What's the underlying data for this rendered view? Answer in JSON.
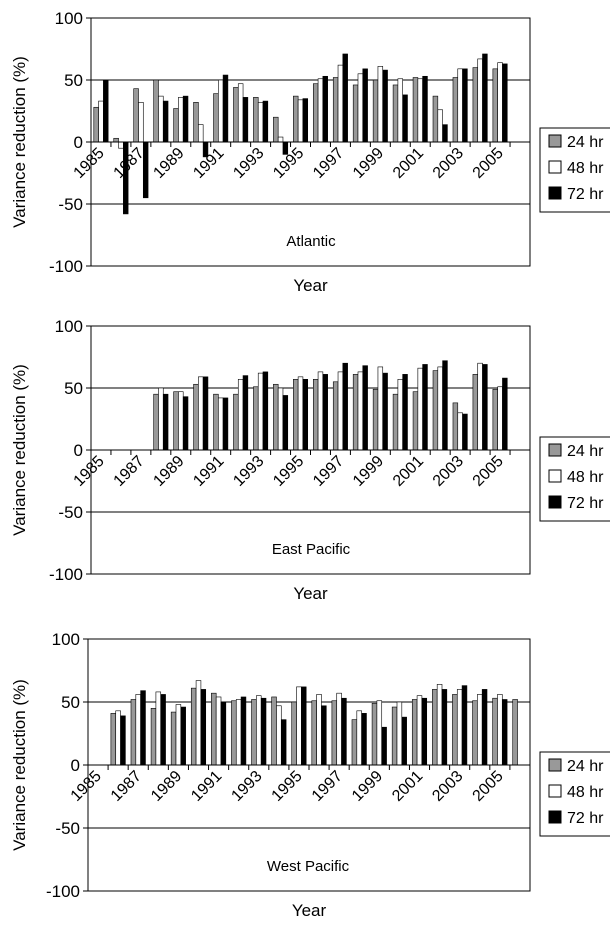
{
  "chart_data": [
    {
      "type": "bar",
      "annotation": "Atlantic",
      "xlabel": "Year",
      "ylabel": "Variance reduction (%)",
      "ylim": [
        -100,
        100
      ],
      "yticks": [
        100,
        50,
        0,
        -50,
        -100
      ],
      "categories": [
        "1985",
        "1986",
        "1987",
        "1988",
        "1989",
        "1990",
        "1991",
        "1992",
        "1993",
        "1994",
        "1995",
        "1996",
        "1997",
        "1998",
        "1999",
        "2000",
        "2001",
        "2002",
        "2003",
        "2004",
        "2005",
        "2006"
      ],
      "xtick_labels": [
        "1985",
        "1987",
        "1989",
        "1991",
        "1993",
        "1995",
        "1997",
        "1999",
        "2001",
        "2003",
        "2005"
      ],
      "legend_position": "right",
      "grid": "horizontal lines at 50, 0 and -50",
      "series": [
        {
          "name": "24 hr",
          "color": "#999999",
          "values": [
            28,
            3,
            43,
            50,
            27,
            32,
            39,
            44,
            36,
            20,
            37,
            47,
            52,
            46,
            50,
            46,
            52,
            37,
            52,
            60,
            59,
            null
          ]
        },
        {
          "name": "48 hr",
          "color": "#ffffff",
          "values": [
            33,
            -5,
            32,
            37,
            36,
            14,
            50,
            47,
            32,
            4,
            34,
            51,
            62,
            55,
            61,
            51,
            51,
            26,
            59,
            67,
            64,
            null
          ]
        },
        {
          "name": "72 hr",
          "color": "#000000",
          "values": [
            50,
            -58,
            -45,
            33,
            37,
            -12,
            54,
            36,
            33,
            -10,
            35,
            53,
            71,
            59,
            58,
            38,
            53,
            14,
            59,
            71,
            63,
            null
          ]
        }
      ]
    },
    {
      "type": "bar",
      "annotation": "East Pacific",
      "xlabel": "Year",
      "ylabel": "Variance reduction (%)",
      "ylim": [
        -100,
        100
      ],
      "yticks": [
        100,
        50,
        0,
        -50,
        -100
      ],
      "categories": [
        "1985",
        "1986",
        "1987",
        "1988",
        "1989",
        "1990",
        "1991",
        "1992",
        "1993",
        "1994",
        "1995",
        "1996",
        "1997",
        "1998",
        "1999",
        "2000",
        "2001",
        "2002",
        "2003",
        "2004",
        "2005",
        "2006"
      ],
      "xtick_labels": [
        "1985",
        "1987",
        "1989",
        "1991",
        "1993",
        "1995",
        "1997",
        "1999",
        "2001",
        "2003",
        "2005"
      ],
      "legend_position": "right",
      "grid": "horizontal lines at 50, 0 and -50",
      "series": [
        {
          "name": "24 hr",
          "color": "#999999",
          "values": [
            null,
            null,
            null,
            45,
            47,
            53,
            45,
            45,
            51,
            53,
            57,
            57,
            55,
            61,
            49,
            45,
            47,
            64,
            38,
            61,
            49,
            null
          ]
        },
        {
          "name": "48 hr",
          "color": "#ffffff",
          "values": [
            null,
            null,
            null,
            50,
            47,
            59,
            42,
            57,
            62,
            50,
            59,
            63,
            63,
            63,
            67,
            57,
            66,
            67,
            30,
            70,
            51,
            null
          ]
        },
        {
          "name": "72 hr",
          "color": "#000000",
          "values": [
            null,
            null,
            null,
            45,
            43,
            59,
            42,
            60,
            63,
            44,
            57,
            61,
            70,
            68,
            62,
            61,
            69,
            72,
            29,
            69,
            58,
            null
          ]
        }
      ]
    },
    {
      "type": "bar",
      "annotation": "West Pacific",
      "xlabel": "Year",
      "ylabel": "Variance reduction (%)",
      "ylim": [
        -100,
        100
      ],
      "yticks": [
        100,
        50,
        0,
        -50,
        -100
      ],
      "categories": [
        "1985",
        "1986",
        "1987",
        "1988",
        "1989",
        "1990",
        "1991",
        "1992",
        "1993",
        "1994",
        "1995",
        "1996",
        "1997",
        "1998",
        "1999",
        "2000",
        "2001",
        "2002",
        "2003",
        "2004",
        "2005",
        "2006"
      ],
      "xtick_labels": [
        "1985",
        "1987",
        "1989",
        "1991",
        "1993",
        "1995",
        "1997",
        "1999",
        "2001",
        "2003",
        "2005"
      ],
      "legend_position": "right",
      "grid": "horizontal lines at 50, 0 and -50",
      "series": [
        {
          "name": "24 hr",
          "color": "#999999",
          "values": [
            null,
            41,
            52,
            45,
            42,
            61,
            57,
            51,
            52,
            54,
            50,
            51,
            51,
            36,
            49,
            46,
            52,
            60,
            56,
            51,
            53,
            52
          ]
        },
        {
          "name": "48 hr",
          "color": "#ffffff",
          "values": [
            null,
            43,
            56,
            58,
            48,
            67,
            54,
            52,
            55,
            47,
            62,
            56,
            57,
            43,
            51,
            50,
            55,
            64,
            60,
            56,
            56,
            null
          ]
        },
        {
          "name": "72 hr",
          "color": "#000000",
          "values": [
            null,
            39,
            59,
            56,
            46,
            60,
            50,
            54,
            53,
            36,
            62,
            47,
            53,
            41,
            30,
            38,
            53,
            60,
            63,
            60,
            52,
            null
          ]
        }
      ]
    }
  ]
}
